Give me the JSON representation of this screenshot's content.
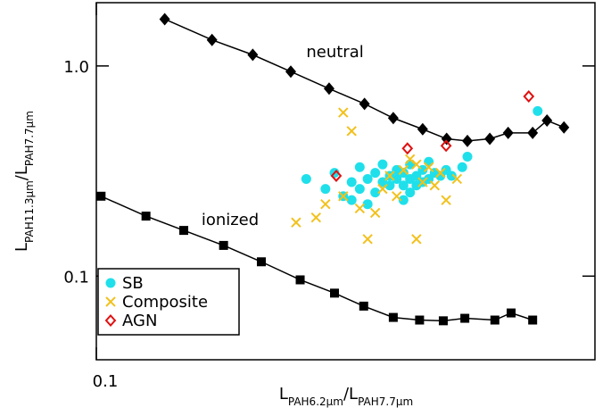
{
  "chart_data": {
    "type": "scatter",
    "log_x": true,
    "log_y": true,
    "x_label": [
      {
        "text": "L",
        "sub": "PAH6.2μm"
      },
      {
        "text": "/L",
        "sub": "PAH7.7μm"
      }
    ],
    "y_label": [
      {
        "text": "L",
        "sub": "PAH11.3μm"
      },
      {
        "text": "/L",
        "sub": "PAH7.7μm"
      }
    ],
    "xlim": [
      0.1,
      0.8
    ],
    "ylim": [
      0.04,
      2.0
    ],
    "xticks": [
      0.1
    ],
    "yticks": [
      0.1,
      {
        "value": 1,
        "label": "1.0"
      }
    ],
    "annotations": [
      {
        "text": "neutral",
        "x": 0.24,
        "y": 1.1
      },
      {
        "text": "ionized",
        "x": 0.155,
        "y": 0.175
      }
    ],
    "lines": [
      {
        "marker": "diamond",
        "color": "#000000",
        "x": [
          0.133,
          0.162,
          0.192,
          0.225,
          0.264,
          0.306,
          0.345,
          0.39,
          0.431,
          0.47,
          0.516,
          0.557,
          0.617,
          0.655,
          0.703
        ],
        "y": [
          1.67,
          1.33,
          1.13,
          0.94,
          0.78,
          0.66,
          0.565,
          0.5,
          0.45,
          0.44,
          0.45,
          0.48,
          0.48,
          0.55,
          0.51
        ]
      },
      {
        "marker": "square",
        "color": "#000000",
        "x": [
          0.102,
          0.123,
          0.144,
          0.17,
          0.199,
          0.234,
          0.27,
          0.305,
          0.345,
          0.385,
          0.425,
          0.465,
          0.527,
          0.564,
          0.617
        ],
        "y": [
          0.24,
          0.193,
          0.165,
          0.14,
          0.117,
          0.096,
          0.083,
          0.072,
          0.0636,
          0.0618,
          0.0613,
          0.063,
          0.0618,
          0.0668,
          0.0618
        ]
      }
    ],
    "legend": "lower left",
    "series": [
      {
        "name": "SB",
        "marker": "circle",
        "color": "#1fe0ea",
        "x": [
          0.24,
          0.26,
          0.27,
          0.28,
          0.29,
          0.3,
          0.3,
          0.31,
          0.32,
          0.32,
          0.33,
          0.33,
          0.34,
          0.34,
          0.35,
          0.35,
          0.36,
          0.36,
          0.37,
          0.37,
          0.37,
          0.38,
          0.38,
          0.39,
          0.39,
          0.4,
          0.4,
          0.41,
          0.42,
          0.43,
          0.44,
          0.46,
          0.47,
          0.29,
          0.31,
          0.36,
          0.63
        ],
        "y": [
          0.29,
          0.26,
          0.31,
          0.24,
          0.28,
          0.33,
          0.26,
          0.29,
          0.31,
          0.25,
          0.28,
          0.34,
          0.3,
          0.27,
          0.29,
          0.32,
          0.27,
          0.31,
          0.29,
          0.34,
          0.25,
          0.3,
          0.27,
          0.32,
          0.28,
          0.29,
          0.35,
          0.31,
          0.3,
          0.32,
          0.3,
          0.33,
          0.37,
          0.23,
          0.22,
          0.23,
          0.61
        ]
      },
      {
        "name": "Composite",
        "marker": "cross",
        "color": "#f2c11c",
        "x": [
          0.28,
          0.29,
          0.23,
          0.25,
          0.26,
          0.28,
          0.3,
          0.32,
          0.31,
          0.38,
          0.43,
          0.41,
          0.34,
          0.36,
          0.38,
          0.4,
          0.42,
          0.33,
          0.35,
          0.39,
          0.45,
          0.37
        ],
        "y": [
          0.6,
          0.49,
          0.18,
          0.19,
          0.22,
          0.24,
          0.21,
          0.2,
          0.15,
          0.15,
          0.23,
          0.27,
          0.3,
          0.32,
          0.34,
          0.33,
          0.31,
          0.26,
          0.24,
          0.28,
          0.29,
          0.36
        ]
      },
      {
        "name": "AGN",
        "marker": "diamond-open",
        "color": "#e01010",
        "x": [
          0.272,
          0.366,
          0.43,
          0.607
        ],
        "y": [
          0.3,
          0.405,
          0.417,
          0.716
        ]
      }
    ]
  }
}
